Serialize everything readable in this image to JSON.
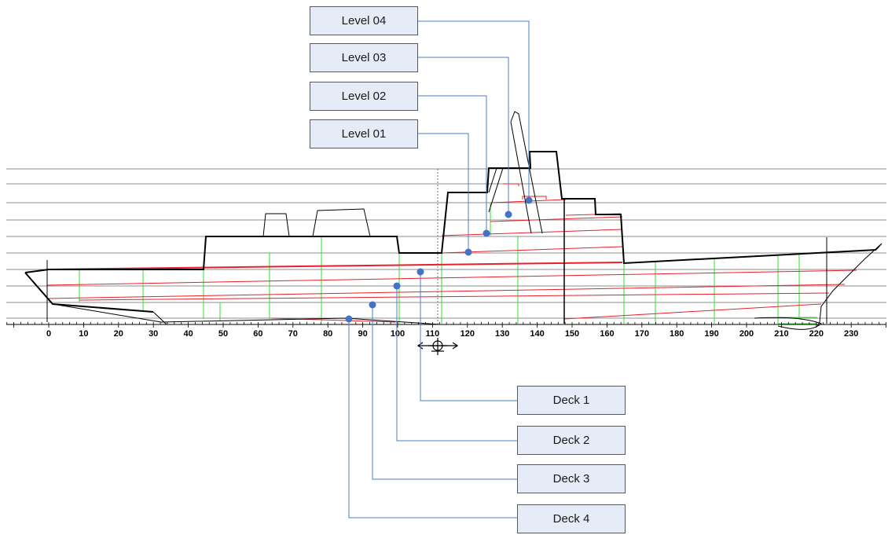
{
  "levels": [
    {
      "label": "Level 04"
    },
    {
      "label": "Level 03"
    },
    {
      "label": "Level 02"
    },
    {
      "label": "Level 01"
    }
  ],
  "decks": [
    {
      "label": "Deck 1"
    },
    {
      "label": "Deck 2"
    },
    {
      "label": "Deck 3"
    },
    {
      "label": "Deck 4"
    }
  ],
  "frame_axis": {
    "ticks": [
      "0",
      "10",
      "20",
      "30",
      "40",
      "50",
      "60",
      "70",
      "80",
      "90",
      "100",
      "110",
      "120",
      "130",
      "140",
      "150",
      "160",
      "170",
      "180",
      "190",
      "200",
      "210",
      "220",
      "230"
    ]
  },
  "colors": {
    "callout_fill": "#e6ecf7",
    "leader": "#4a7cc9",
    "marker": "#4472c4",
    "deck_line": "#e8202a",
    "frame_line": "#2ee02e",
    "hull": "#000000",
    "waterline": "#8c8c8c"
  },
  "icons": {
    "midship": "midship-section-icon"
  }
}
